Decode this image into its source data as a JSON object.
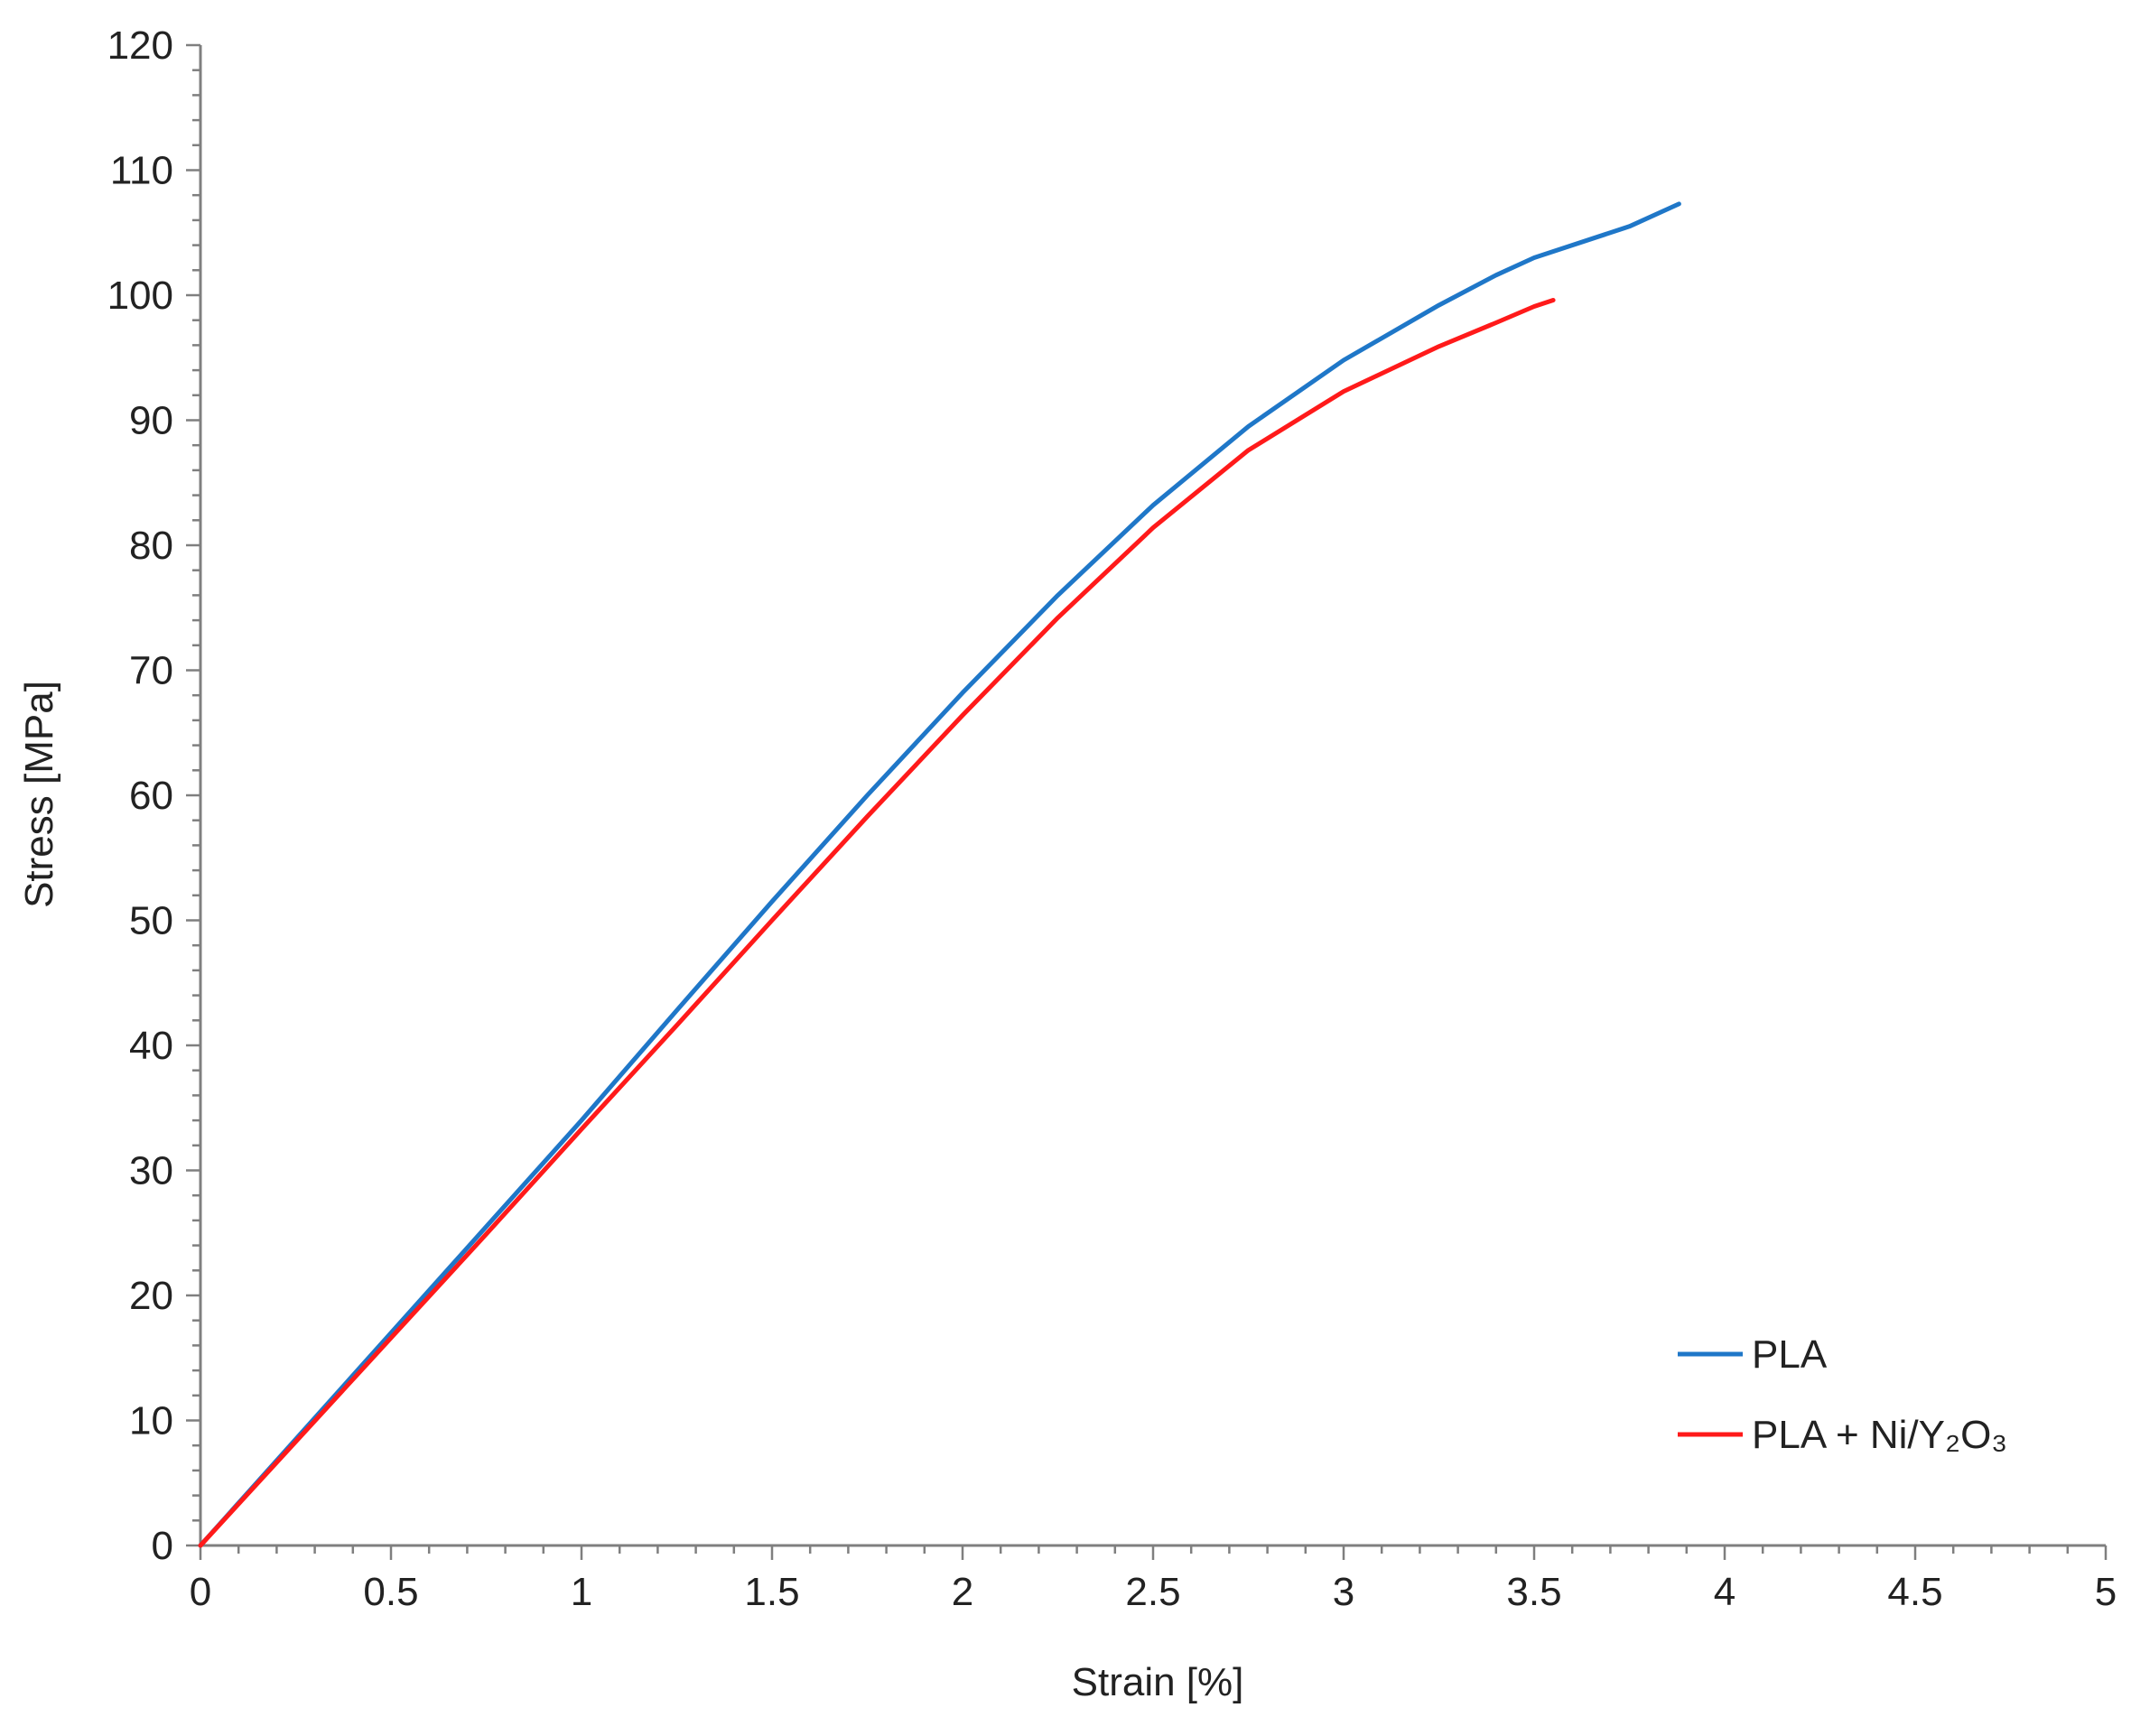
{
  "chart_data": {
    "type": "line",
    "title": "",
    "xlabel": "Strain [%]",
    "ylabel": "Stress [MPa]",
    "xlim": [
      0,
      5
    ],
    "ylim": [
      0,
      120
    ],
    "x_ticks": [
      "0",
      "0.5",
      "1",
      "1.5",
      "2",
      "2.5",
      "3",
      "3.5",
      "4",
      "4.5",
      "5"
    ],
    "y_ticks": [
      "0",
      "10",
      "20",
      "30",
      "40",
      "50",
      "60",
      "70",
      "80",
      "90",
      "100",
      "110",
      "120"
    ],
    "grid": false,
    "legend_position": "bottom-right",
    "series": [
      {
        "name": "PLA",
        "color": "#1f77c8",
        "points": [
          [
            0,
            0
          ],
          [
            0.25,
            8.5
          ],
          [
            0.5,
            17
          ],
          [
            0.75,
            25.5
          ],
          [
            1.0,
            34
          ],
          [
            1.25,
            42.8
          ],
          [
            1.5,
            51.5
          ],
          [
            1.75,
            60
          ],
          [
            2.0,
            68.2
          ],
          [
            2.25,
            76
          ],
          [
            2.5,
            83.2
          ],
          [
            2.75,
            89.5
          ],
          [
            3.0,
            94.8
          ],
          [
            3.25,
            99.2
          ],
          [
            3.4,
            101.6
          ],
          [
            3.5,
            103.0
          ],
          [
            3.75,
            105.5
          ],
          [
            3.88,
            107.3
          ]
        ]
      },
      {
        "name": "PLA + Ni/Y₂O₃",
        "color": "#ff1a1a",
        "points": [
          [
            0,
            0
          ],
          [
            0.25,
            8.3
          ],
          [
            0.5,
            16.6
          ],
          [
            0.75,
            24.9
          ],
          [
            1.0,
            33.3
          ],
          [
            1.25,
            41.6
          ],
          [
            1.5,
            50
          ],
          [
            1.75,
            58.3
          ],
          [
            2.0,
            66.4
          ],
          [
            2.25,
            74.2
          ],
          [
            2.5,
            81.4
          ],
          [
            2.75,
            87.6
          ],
          [
            3.0,
            92.3
          ],
          [
            3.25,
            95.9
          ],
          [
            3.4,
            97.8
          ],
          [
            3.5,
            99.1
          ],
          [
            3.55,
            99.6
          ]
        ]
      }
    ]
  }
}
